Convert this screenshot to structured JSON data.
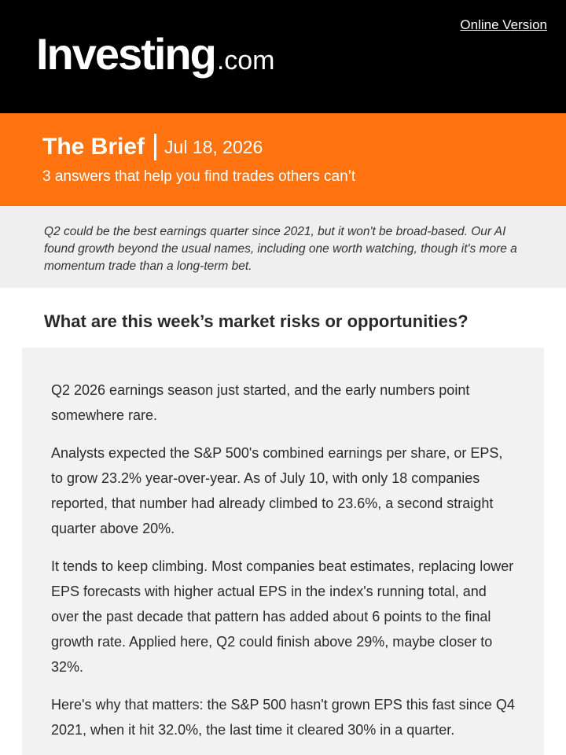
{
  "header": {
    "online_version_label": "Online Version",
    "logo_main": "Investing",
    "logo_suffix": ".com"
  },
  "brief": {
    "title": "The Brief",
    "date": "Jul 18, 2026",
    "tagline": "3 answers that help you find trades others can’t"
  },
  "intro": {
    "text": "Q2 could be the best earnings quarter since 2021, but it won't be broad-based. Our AI found growth beyond the usual names, including one worth watching, though it's more a momentum trade than a long-term bet."
  },
  "section": {
    "question": "What are this week’s market risks or opportunities?",
    "paragraphs": [
      "Q2 2026 earnings season just started, and the early numbers point somewhere rare.",
      "Analysts expected the S&P 500's combined earnings per share, or EPS, to grow 23.2% year-over-year. As of July 10, with only 18 companies reported, that number had already climbed to 23.6%, a second straight quarter above 20%.",
      "It tends to keep climbing. Most companies beat estimates, replacing lower EPS forecasts with higher actual EPS in the index's running total, and over the past decade that pattern has added about 6 points to the final growth rate. Applied here, Q2 could finish above 29%, maybe closer to 32%.",
      "Here's why that matters: the S&P 500 hasn't grown EPS this fast since Q4 2021, when it hit 32.0%, the last time it cleared 30% in a quarter."
    ]
  },
  "colors": {
    "header_bg": "#000000",
    "brand_orange": "#ff7411",
    "intro_bg": "#efefef",
    "card_bg": "#f2f2f2"
  }
}
